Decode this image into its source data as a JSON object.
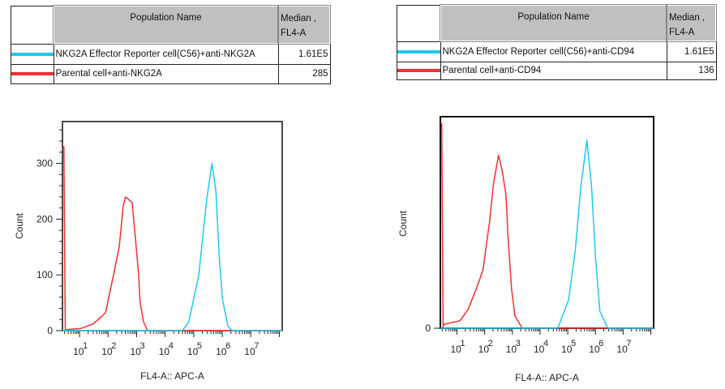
{
  "colors": {
    "cyan": "#1ec8f0",
    "red": "#f03030"
  },
  "tables": [
    {
      "header": {
        "name": "Population Name",
        "median_l1": "Median ,",
        "median_l2": "FL4-A"
      },
      "rows": [
        {
          "color": "#1ec8f0",
          "name": "NKG2A Effector Reporter cell(C56)+anti-NKG2A",
          "median": "1.61E5"
        },
        {
          "color": "#f03030",
          "name": "Parental cell+anti-NKG2A",
          "median": "285"
        }
      ]
    },
    {
      "header": {
        "name": "Population Name",
        "median_l1": "Median ,",
        "median_l2": "FL4-A"
      },
      "rows": [
        {
          "color": "#1ec8f0",
          "name": "NKG2A  Effector Reporter cell(C56)+anti-CD94",
          "median": "1.61E5"
        },
        {
          "color": "#f03030",
          "name": "Parental cell+anti-CD94",
          "median": "136"
        }
      ]
    }
  ],
  "chart_data": [
    {
      "type": "line",
      "xlabel": "FL4-A:: APC-A",
      "ylabel": "Count",
      "xscale": "log",
      "xlim_log10": [
        0.4,
        8.1
      ],
      "ylim": [
        0,
        375
      ],
      "x_ticks": [
        "1",
        "2",
        "3",
        "4",
        "5",
        "6",
        "7"
      ],
      "y_ticks": [
        0,
        100,
        200,
        300
      ],
      "series": [
        {
          "color": "#f03030",
          "points": [
            [
              0.4,
              325
            ],
            [
              0.45,
              330
            ],
            [
              0.5,
              0
            ],
            [
              0.58,
              2
            ],
            [
              1.06,
              4
            ],
            [
              1.48,
              12
            ],
            [
              1.76,
              25
            ],
            [
              1.91,
              32
            ],
            [
              2.19,
              100
            ],
            [
              2.39,
              150
            ],
            [
              2.53,
              224
            ],
            [
              2.61,
              240
            ],
            [
              2.84,
              230
            ],
            [
              2.95,
              170
            ],
            [
              3.07,
              100
            ],
            [
              3.12,
              52
            ],
            [
              3.24,
              16
            ],
            [
              3.38,
              0
            ],
            [
              8.1,
              0
            ]
          ]
        },
        {
          "color": "#1ec8f0",
          "points": [
            [
              0.4,
              0
            ],
            [
              4.6,
              0
            ],
            [
              4.82,
              15
            ],
            [
              5.18,
              100
            ],
            [
              5.31,
              165
            ],
            [
              5.45,
              234
            ],
            [
              5.64,
              300
            ],
            [
              5.78,
              249
            ],
            [
              5.89,
              135
            ],
            [
              6.01,
              56
            ],
            [
              6.2,
              8
            ],
            [
              6.35,
              0
            ],
            [
              8.1,
              0
            ]
          ]
        }
      ]
    },
    {
      "type": "line",
      "xlabel": "FL4-A:: APC-A",
      "ylabel": "Count",
      "xscale": "log",
      "xlim_log10": [
        0.4,
        8.1
      ],
      "ylim": [
        0,
        1.125
      ],
      "x_ticks": [
        "1",
        "2",
        "3",
        "4",
        "5",
        "6",
        "7"
      ],
      "y_ticks": [
        0
      ],
      "series": [
        {
          "color": "#f03030",
          "points": [
            [
              0.4,
              1.09
            ],
            [
              0.45,
              1.09
            ],
            [
              0.5,
              0
            ],
            [
              0.52,
              0.02
            ],
            [
              1.11,
              0.04
            ],
            [
              1.4,
              0.1
            ],
            [
              1.7,
              0.21
            ],
            [
              1.94,
              0.31
            ],
            [
              2.18,
              0.57
            ],
            [
              2.32,
              0.77
            ],
            [
              2.5,
              0.92
            ],
            [
              2.63,
              0.84
            ],
            [
              2.77,
              0.71
            ],
            [
              2.85,
              0.47
            ],
            [
              2.97,
              0.21
            ],
            [
              3.09,
              0.065
            ],
            [
              3.36,
              0
            ],
            [
              8.1,
              0
            ]
          ]
        },
        {
          "color": "#1ec8f0",
          "points": [
            [
              0.4,
              0
            ],
            [
              4.64,
              0
            ],
            [
              5.03,
              0.15
            ],
            [
              5.27,
              0.41
            ],
            [
              5.47,
              0.75
            ],
            [
              5.69,
              1.0
            ],
            [
              5.86,
              0.75
            ],
            [
              6.0,
              0.38
            ],
            [
              6.16,
              0.09
            ],
            [
              6.45,
              0
            ],
            [
              8.1,
              0
            ]
          ]
        }
      ]
    }
  ]
}
